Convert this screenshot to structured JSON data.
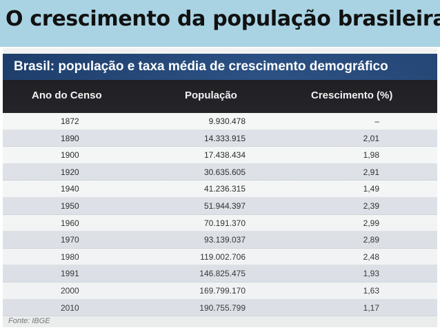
{
  "slide": {
    "title": "O crescimento da população brasileira"
  },
  "table": {
    "heading": "Brasil: população e taxa média de crescimento demográfico",
    "columns": {
      "year": "Ano do Censo",
      "population": "População",
      "growth": "Crescimento (%)"
    },
    "rows": [
      {
        "year": "1872",
        "population": "9.930.478",
        "growth": "–"
      },
      {
        "year": "1890",
        "population": "14.333.915",
        "growth": "2,01"
      },
      {
        "year": "1900",
        "population": "17.438.434",
        "growth": "1,98"
      },
      {
        "year": "1920",
        "population": "30.635.605",
        "growth": "2,91"
      },
      {
        "year": "1940",
        "population": "41.236.315",
        "growth": "1,49"
      },
      {
        "year": "1950",
        "population": "51.944.397",
        "growth": "2,39"
      },
      {
        "year": "1960",
        "population": "70.191.370",
        "growth": "2,99"
      },
      {
        "year": "1970",
        "population": "93.139.037",
        "growth": "2,89"
      },
      {
        "year": "1980",
        "population": "119.002.706",
        "growth": "2,48"
      },
      {
        "year": "1991",
        "population": "146.825.475",
        "growth": "1,93"
      },
      {
        "year": "2000",
        "population": "169.799.170",
        "growth": "1,63"
      },
      {
        "year": "2010",
        "population": "190.755.799",
        "growth": "1,17"
      }
    ],
    "source": "Fonte: IBGE"
  },
  "colors": {
    "title_bar": "#a9d3e3",
    "heading_bar": "#1c3d6b",
    "column_header_bar": "#1e1e22",
    "row_stripe": "#dfe3e9"
  }
}
